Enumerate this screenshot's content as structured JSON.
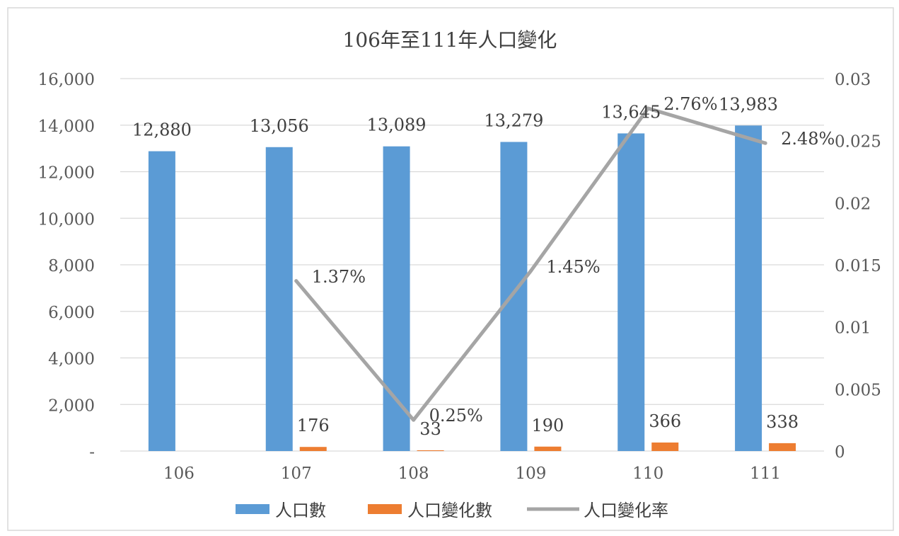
{
  "chart_data": {
    "type": "bar",
    "title": "106年至111年人口變化",
    "categories": [
      "106",
      "107",
      "108",
      "109",
      "110",
      "111"
    ],
    "series": [
      {
        "name": "人口數",
        "type": "bar",
        "axis": "left",
        "color": "#5b9bd5",
        "values": [
          12880,
          13056,
          13089,
          13279,
          13645,
          13983
        ],
        "labels": [
          "12,880",
          "13,056",
          "13,089",
          "13,279",
          "13,645",
          "13,983"
        ]
      },
      {
        "name": "人口變化數",
        "type": "bar",
        "axis": "left",
        "color": "#ed7d31",
        "values": [
          null,
          176,
          33,
          190,
          366,
          338
        ],
        "labels": [
          "",
          "176",
          "33",
          "190",
          "366",
          "338"
        ]
      },
      {
        "name": "人口變化率",
        "type": "line",
        "axis": "right",
        "color": "#a5a5a5",
        "values": [
          null,
          0.0137,
          0.0025,
          0.0145,
          0.0276,
          0.0248
        ],
        "labels": [
          "",
          "1.37%",
          "0.25%",
          "1.45%",
          "2.76%",
          "2.48%"
        ]
      }
    ],
    "y_left": {
      "min": 0,
      "max": 16000,
      "ticks": [
        0,
        2000,
        4000,
        6000,
        8000,
        10000,
        12000,
        14000,
        16000
      ],
      "tick_labels": [
        "-",
        "2,000",
        "4,000",
        "6,000",
        "8,000",
        "10,000",
        "12,000",
        "14,000",
        "16,000"
      ]
    },
    "y_right": {
      "min": 0,
      "max": 0.03,
      "ticks": [
        0,
        0.005,
        0.01,
        0.015,
        0.02,
        0.025,
        0.03
      ],
      "tick_labels": [
        "0",
        "0.005",
        "0.01",
        "0.015",
        "0.02",
        "0.025",
        "0.03"
      ]
    },
    "grid": true,
    "legend": "bottom"
  }
}
